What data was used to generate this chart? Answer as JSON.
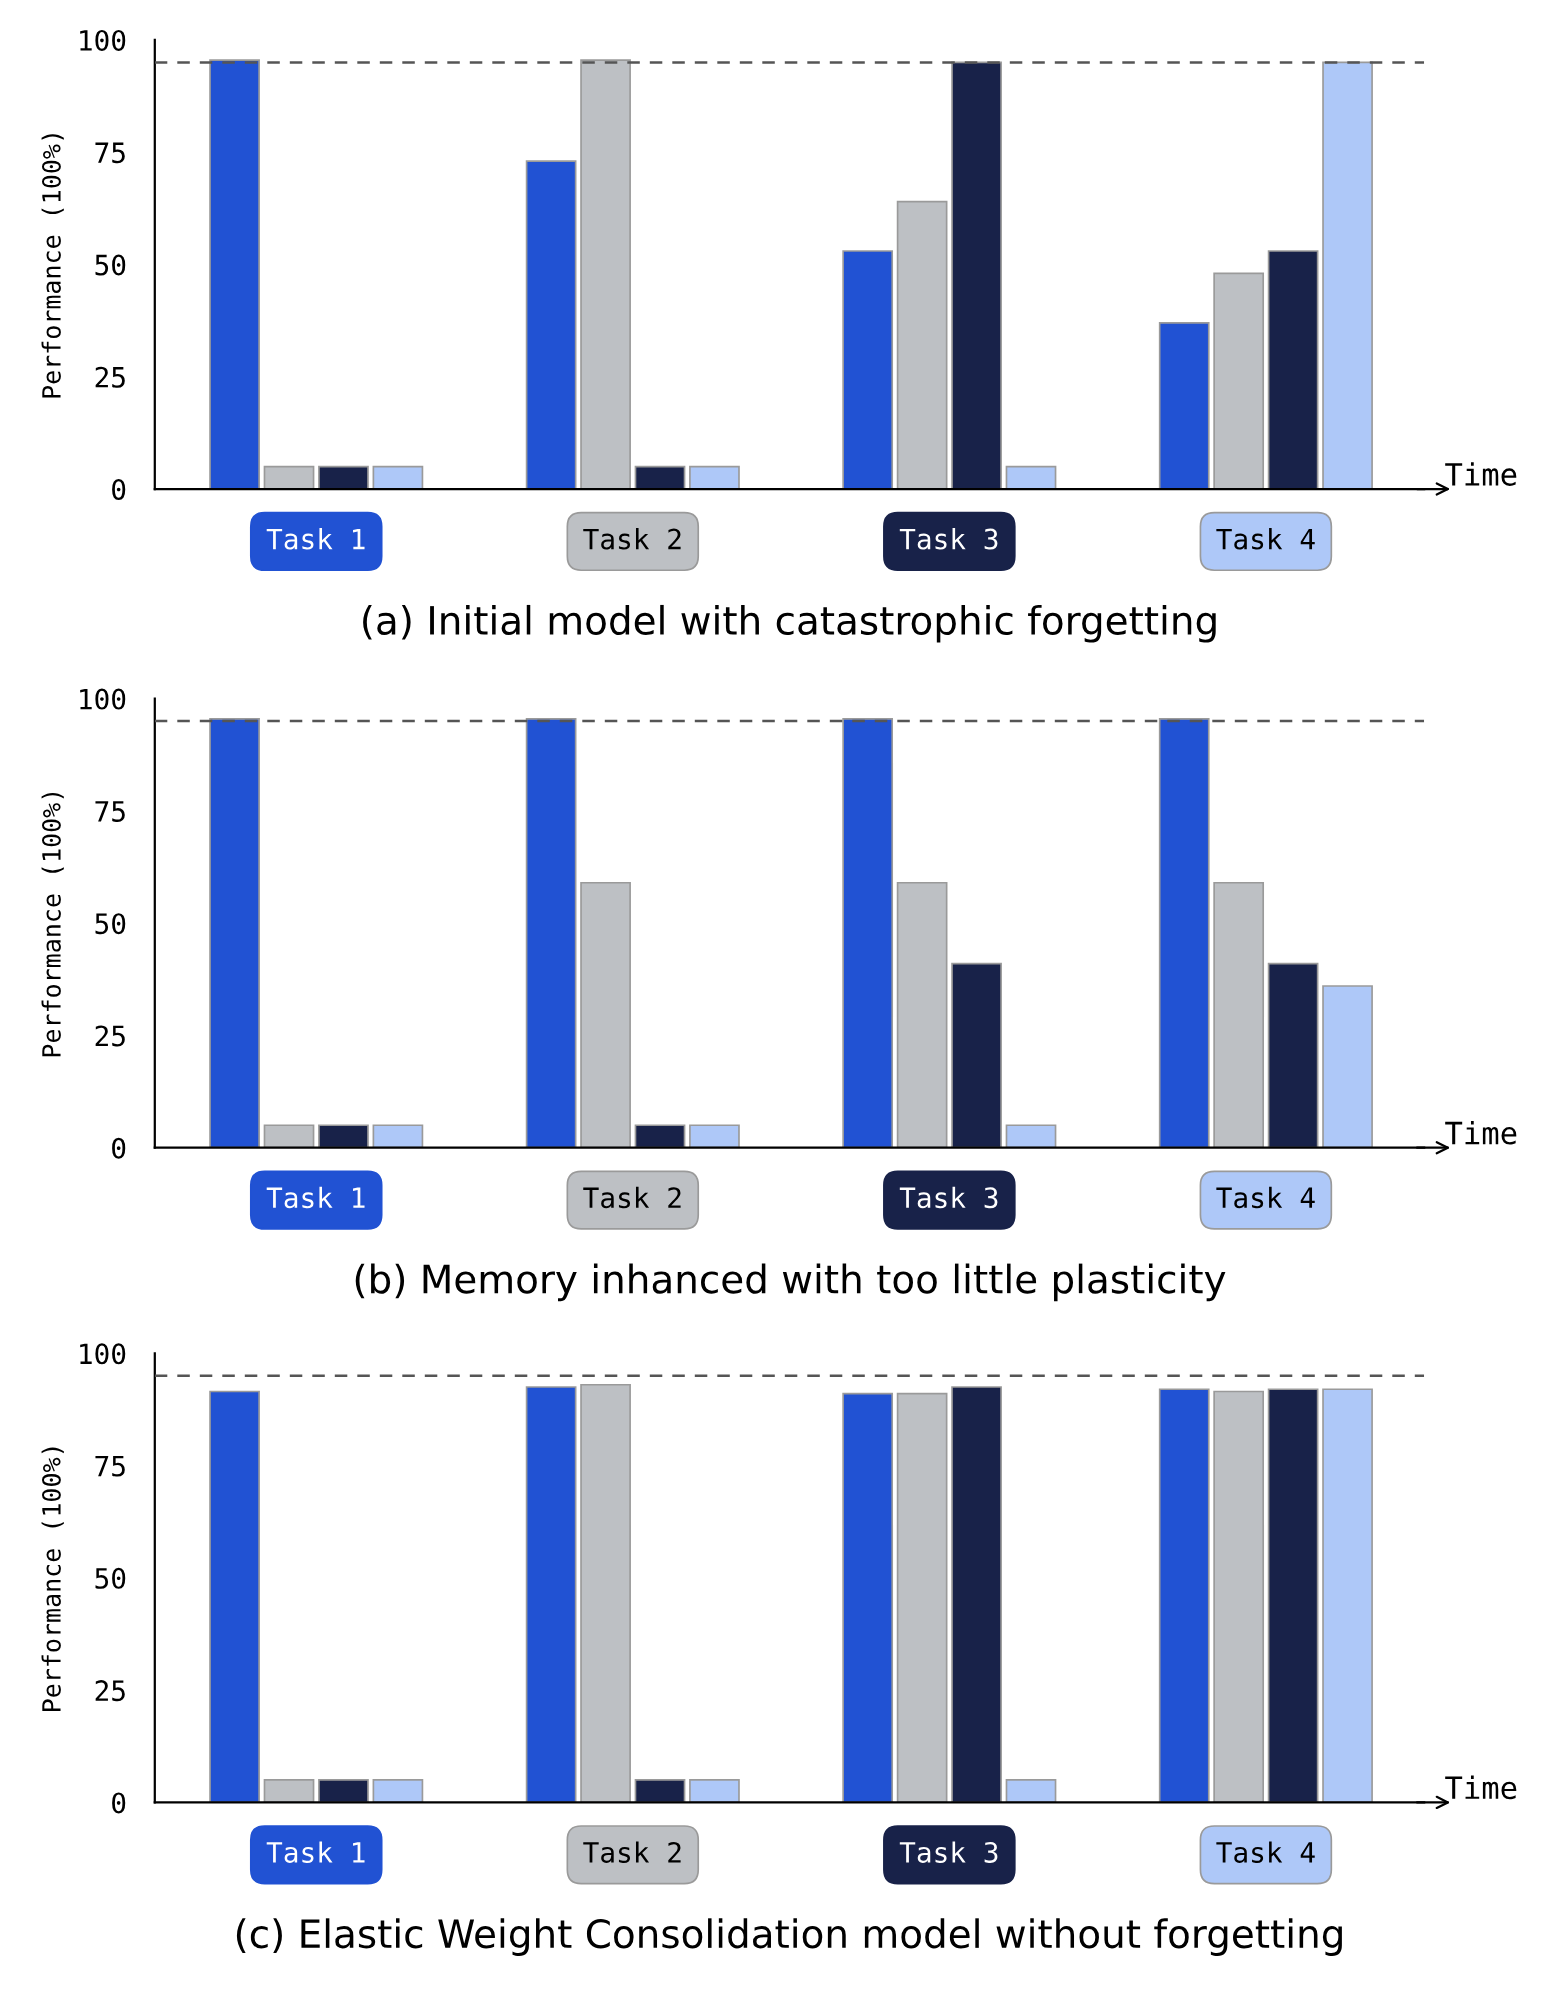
{
  "chart_data": [
    {
      "type": "bar",
      "title": "(a) Initial model with catastrophic forgetting",
      "xlabel": "Time",
      "ylabel": "Performance (100%)",
      "categories": [
        "Task 1",
        "Task 2",
        "Task 3",
        "Task 4"
      ],
      "series": [
        {
          "color": "#2152d3",
          "values": [
            95.5,
            73,
            53,
            37
          ]
        },
        {
          "color": "#bdc0c4",
          "values": [
            5,
            95.5,
            64,
            48
          ]
        },
        {
          "color": "#182249",
          "values": [
            5,
            5,
            95,
            53
          ]
        },
        {
          "color": "#aec8f8",
          "values": [
            5,
            5,
            5,
            95
          ]
        }
      ],
      "ylim": [
        0,
        100
      ],
      "yticks": [
        0,
        25,
        50,
        75,
        100
      ],
      "grid": false,
      "legend": false,
      "ref_lines": [
        {
          "axis": "y",
          "value": 95,
          "line_style": "dashed",
          "color": "#555555"
        }
      ]
    },
    {
      "type": "bar",
      "title": "(b) Memory inhanced with too little plasticity",
      "xlabel": "Time",
      "ylabel": "Performance (100%)",
      "categories": [
        "Task 1",
        "Task 2",
        "Task 3",
        "Task 4"
      ],
      "series": [
        {
          "color": "#2152d3",
          "values": [
            95.5,
            95.5,
            95.5,
            95.5
          ]
        },
        {
          "color": "#bdc0c4",
          "values": [
            5,
            59,
            59,
            59
          ]
        },
        {
          "color": "#182249",
          "values": [
            5,
            5,
            41,
            41
          ]
        },
        {
          "color": "#aec8f8",
          "values": [
            5,
            5,
            5,
            36
          ]
        }
      ],
      "ylim": [
        0,
        100
      ],
      "yticks": [
        0,
        25,
        50,
        75,
        100
      ],
      "grid": false,
      "legend": false,
      "ref_lines": [
        {
          "axis": "y",
          "value": 95,
          "line_style": "dashed",
          "color": "#555555"
        }
      ]
    },
    {
      "type": "bar",
      "title": "(c) Elastic Weight Consolidation model without forgetting",
      "xlabel": "Time",
      "ylabel": "Performance (100%)",
      "categories": [
        "Task 1",
        "Task 2",
        "Task 3",
        "Task 4"
      ],
      "series": [
        {
          "color": "#2152d3",
          "values": [
            91.5,
            92.5,
            91,
            92
          ]
        },
        {
          "color": "#bdc0c4",
          "values": [
            5,
            93,
            91,
            91.5
          ]
        },
        {
          "color": "#182249",
          "values": [
            5,
            5,
            92.5,
            92
          ]
        },
        {
          "color": "#aec8f8",
          "values": [
            5,
            5,
            5,
            92
          ]
        }
      ],
      "ylim": [
        0,
        100
      ],
      "yticks": [
        0,
        25,
        50,
        75,
        100
      ],
      "grid": false,
      "legend": false,
      "ref_lines": [
        {
          "axis": "y",
          "value": 95,
          "line_style": "dashed",
          "color": "#555555"
        }
      ]
    }
  ]
}
